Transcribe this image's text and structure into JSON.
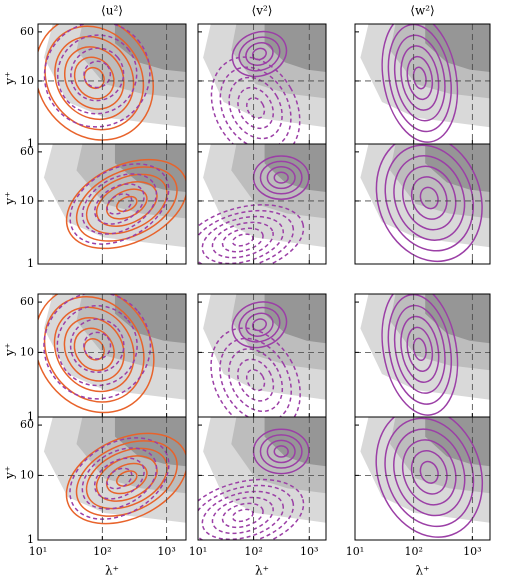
{
  "chart_data": {
    "type": "contour",
    "column_titles": [
      "⟨u²⟩",
      "⟨v²⟩",
      "⟨w²⟩"
    ],
    "xlabel": "λ⁺",
    "ylabel": "y⁺",
    "xscale": "log",
    "yscale": "log",
    "xlim": [
      10,
      2000
    ],
    "ylim": [
      1,
      80
    ],
    "xticks": [
      {
        "value": 10,
        "label": "10¹"
      },
      {
        "value": 100,
        "label": "10²"
      },
      {
        "value": 1000,
        "label": "10³"
      }
    ],
    "yticks": [
      1,
      10,
      60
    ]
  }
}
